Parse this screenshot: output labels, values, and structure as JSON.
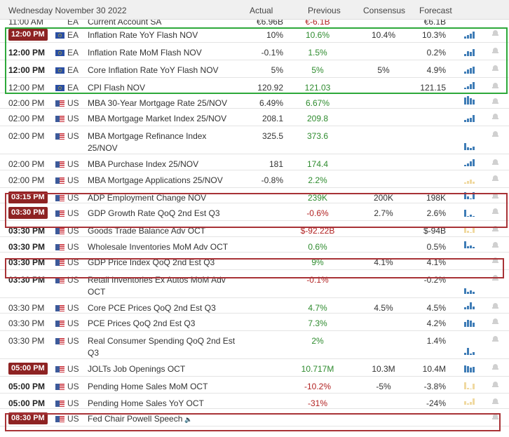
{
  "header": {
    "date": "Wednesday November 30 2022",
    "actual": "Actual",
    "previous": "Previous",
    "consensus": "Consensus",
    "forecast": "Forecast"
  },
  "peek_row": {
    "time": "11:00 AM",
    "country": "EA",
    "event": "Current Account SA",
    "actual": "€6.96B",
    "previous": "€-6.1B",
    "forecast": "€6.1B"
  },
  "rows": [
    {
      "time": "12:00 PM",
      "time_style": "badge",
      "country": "EA",
      "flag": "ea",
      "event": "Inflation Rate YoY Flash NOV",
      "actual": "10%",
      "previous": "10.6%",
      "previous_dir": "up",
      "consensus": "10.4%",
      "forecast": "10.3%",
      "spark": [
        3,
        5,
        7,
        10
      ],
      "spark_color": "blue",
      "h": 25
    },
    {
      "time": "12:00 PM",
      "time_style": "bold",
      "country": "EA",
      "flag": "ea",
      "event": "Inflation Rate MoM Flash NOV",
      "actual": "-0.1%",
      "previous": "1.5%",
      "previous_dir": "up",
      "consensus": "",
      "forecast": "0.2%",
      "spark": [
        3,
        7,
        6,
        10
      ],
      "spark_color": "blue",
      "h": 25
    },
    {
      "time": "12:00 PM",
      "time_style": "bold",
      "country": "EA",
      "flag": "ea",
      "event": "Core Inflation Rate YoY Flash NOV",
      "actual": "5%",
      "previous": "5%",
      "previous_dir": "up",
      "consensus": "5%",
      "forecast": "4.9%",
      "spark": [
        3,
        6,
        8,
        10
      ],
      "spark_color": "blue",
      "h": 25
    },
    {
      "time": "12:00 PM",
      "time_style": "normal",
      "country": "EA",
      "flag": "ea",
      "event": "CPI Flash NOV",
      "actual": "120.92",
      "previous": "121.03",
      "previous_dir": "up",
      "consensus": "",
      "forecast": "121.15",
      "spark": [
        2,
        4,
        7,
        10
      ],
      "spark_color": "blue",
      "h": 22
    },
    {
      "time": "02:00 PM",
      "time_style": "normal",
      "country": "US",
      "flag": "us",
      "event": "MBA 30-Year Mortgage Rate 25/NOV",
      "actual": "6.49%",
      "previous": "6.67%",
      "previous_dir": "up",
      "consensus": "",
      "forecast": "",
      "spark": [
        10,
        12,
        9,
        7
      ],
      "spark_color": "blue",
      "h": 22
    },
    {
      "time": "02:00 PM",
      "time_style": "normal",
      "country": "US",
      "flag": "us",
      "event": "MBA Mortgage Market Index 25/NOV",
      "actual": "208.1",
      "previous": "209.8",
      "previous_dir": "up",
      "consensus": "",
      "forecast": "",
      "spark": [
        3,
        5,
        6,
        10
      ],
      "spark_color": "blue",
      "h": 25
    },
    {
      "time": "02:00 PM",
      "time_style": "normal",
      "country": "US",
      "flag": "us",
      "event": "MBA Mortgage Refinance Index 25/NOV",
      "actual": "325.5",
      "previous": "373.6",
      "previous_dir": "up",
      "consensus": "",
      "forecast": "",
      "spark": [
        10,
        4,
        3,
        5
      ],
      "spark_color": "blue",
      "h": 40
    },
    {
      "time": "02:00 PM",
      "time_style": "normal",
      "country": "US",
      "flag": "us",
      "event": "MBA Purchase Index 25/NOV",
      "actual": "181",
      "previous": "174.4",
      "previous_dir": "up",
      "consensus": "",
      "forecast": "",
      "spark": [
        2,
        4,
        7,
        10
      ],
      "spark_color": "blue",
      "h": 23
    },
    {
      "time": "02:00 PM",
      "time_style": "normal",
      "country": "US",
      "flag": "us",
      "event": "MBA Mortgage Applications 25/NOV",
      "actual": "-0.8%",
      "previous": "2.2%",
      "previous_dir": "up",
      "consensus": "",
      "forecast": "",
      "spark": [
        2,
        4,
        6,
        3
      ],
      "spark_color": "tan",
      "h": 25
    },
    {
      "time": "03:15 PM",
      "time_style": "badge",
      "country": "US",
      "flag": "us",
      "event": "ADP Employment Change NOV",
      "actual": "",
      "previous": "239K",
      "previous_dir": "up",
      "consensus": "200K",
      "forecast": "198K",
      "spark": [
        10,
        4,
        0,
        10
      ],
      "spark_color": "blue",
      "h": 22
    },
    {
      "time": "03:30 PM",
      "time_style": "badge",
      "country": "US",
      "flag": "us",
      "event": "GDP Growth Rate QoQ 2nd Est Q3",
      "actual": "",
      "previous": "-0.6%",
      "previous_dir": "down",
      "consensus": "2.7%",
      "forecast": "2.6%",
      "spark": [
        10,
        0,
        3,
        0
      ],
      "spark_color": "blue",
      "h": 25
    },
    {
      "time": "03:30 PM",
      "time_style": "bold",
      "country": "US",
      "flag": "us",
      "event": "Goods Trade Balance Adv OCT",
      "actual": "",
      "previous": "$-92.22B",
      "previous_dir": "down",
      "consensus": "",
      "forecast": "$-94B",
      "spark": [
        8,
        3,
        0,
        7
      ],
      "spark_color": "tan",
      "h": 23
    },
    {
      "time": "03:30 PM",
      "time_style": "bold",
      "country": "US",
      "flag": "us",
      "event": "Wholesale Inventories MoM Adv OCT",
      "actual": "",
      "previous": "0.6%",
      "previous_dir": "up",
      "consensus": "",
      "forecast": "0.5%",
      "spark": [
        10,
        3,
        4,
        2
      ],
      "spark_color": "blue",
      "h": 22
    },
    {
      "time": "03:30 PM",
      "time_style": "bold",
      "country": "US",
      "flag": "us",
      "event": "GDP Price Index QoQ 2nd Est Q3",
      "actual": "",
      "previous": "9%",
      "previous_dir": "up",
      "consensus": "4.1%",
      "forecast": "4.1%",
      "spark": [],
      "spark_color": "blue",
      "h": 25
    },
    {
      "time": "03:30 PM",
      "time_style": "bold",
      "country": "US",
      "flag": "us",
      "event": "Retail Inventories Ex Autos MoM Adv OCT",
      "actual": "",
      "previous": "-0.1%",
      "previous_dir": "down",
      "consensus": "",
      "forecast": "-0.2%",
      "spark": [
        8,
        3,
        5,
        3
      ],
      "spark_color": "blue",
      "h": 40
    },
    {
      "time": "03:30 PM",
      "time_style": "normal",
      "country": "US",
      "flag": "us",
      "event": "Core PCE Prices QoQ 2nd Est Q3",
      "actual": "",
      "previous": "4.7%",
      "previous_dir": "up",
      "consensus": "4.5%",
      "forecast": "4.5%",
      "spark": [
        3,
        5,
        10,
        4
      ],
      "spark_color": "blue",
      "h": 22
    },
    {
      "time": "03:30 PM",
      "time_style": "normal",
      "country": "US",
      "flag": "us",
      "event": "PCE Prices QoQ 2nd Est Q3",
      "actual": "",
      "previous": "7.3%",
      "previous_dir": "up",
      "consensus": "",
      "forecast": "4.2%",
      "spark": [
        7,
        10,
        9,
        6
      ],
      "spark_color": "blue",
      "h": 25
    },
    {
      "time": "03:30 PM",
      "time_style": "normal",
      "country": "US",
      "flag": "us",
      "event": "Real Consumer Spending QoQ 2nd Est Q3",
      "actual": "",
      "previous": "2%",
      "previous_dir": "up",
      "consensus": "",
      "forecast": "1.4%",
      "spark": [
        3,
        10,
        2,
        4
      ],
      "spark_color": "blue",
      "h": 40
    },
    {
      "time": "05:00 PM",
      "time_style": "badge",
      "country": "US",
      "flag": "us",
      "event": "JOLTs Job Openings OCT",
      "actual": "",
      "previous": "10.717M",
      "previous_dir": "up",
      "consensus": "10.3M",
      "forecast": "10.4M",
      "spark": [
        10,
        9,
        7,
        8
      ],
      "spark_color": "blue",
      "h": 25
    },
    {
      "time": "05:00 PM",
      "time_style": "bold",
      "country": "US",
      "flag": "us",
      "event": "Pending Home Sales MoM OCT",
      "actual": "",
      "previous": "-10.2%",
      "previous_dir": "down",
      "consensus": "-5%",
      "forecast": "-3.8%",
      "spark": [
        10,
        2,
        0,
        8
      ],
      "spark_color": "tan",
      "h": 24
    },
    {
      "time": "05:00 PM",
      "time_style": "bold",
      "country": "US",
      "flag": "us",
      "event": "Pending Home Sales YoY OCT",
      "actual": "",
      "previous": "-31%",
      "previous_dir": "down",
      "consensus": "",
      "forecast": "-24%",
      "spark": [
        5,
        2,
        4,
        9
      ],
      "spark_color": "tan",
      "h": 22
    },
    {
      "time": "08:30 PM",
      "time_style": "badge",
      "country": "US",
      "flag": "us",
      "event": "Fed Chair Powell Speech",
      "actual": "",
      "previous": "",
      "previous_dir": "up",
      "consensus": "",
      "forecast": "",
      "spark": [],
      "spark_color": "blue",
      "h": 25,
      "speaker": true
    }
  ],
  "highlight_colors": {
    "green": "#2da83a",
    "red": "#a83236"
  }
}
